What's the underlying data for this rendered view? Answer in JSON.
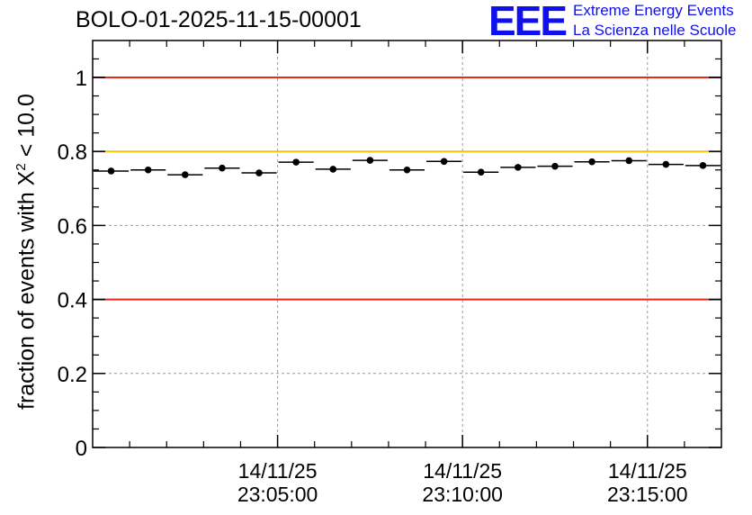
{
  "chart_data": {
    "type": "scatter",
    "title": "BOLO-01-2025-11-15-00001",
    "ylabel_prefix": "fraction of events with X",
    "ylabel_sup": "2",
    "ylabel_suffix": " < 10.0",
    "xlabel": "",
    "ylim": [
      0,
      1.1
    ],
    "yticks": [
      {
        "value": 0,
        "label": "0"
      },
      {
        "value": 0.2,
        "label": "0.2"
      },
      {
        "value": 0.4,
        "label": "0.4"
      },
      {
        "value": 0.6,
        "label": "0.6"
      },
      {
        "value": 0.8,
        "label": "0.8"
      },
      {
        "value": 1,
        "label": "1"
      }
    ],
    "x_minutes_range": [
      0,
      17
    ],
    "xticks": [
      {
        "minute": 5,
        "date": "14/11/25",
        "time": "23:05:00"
      },
      {
        "minute": 10,
        "date": "14/11/25",
        "time": "23:10:00"
      },
      {
        "minute": 15,
        "date": "14/11/25",
        "time": "23:15:00"
      }
    ],
    "reference_lines": [
      {
        "y": 1.0,
        "color": "#e8281f"
      },
      {
        "y": 0.8,
        "color": "#ffc000"
      },
      {
        "y": 0.4,
        "color": "#e8281f"
      }
    ],
    "points": [
      {
        "x": 0.5,
        "y": 0.747
      },
      {
        "x": 1.5,
        "y": 0.75
      },
      {
        "x": 2.5,
        "y": 0.737
      },
      {
        "x": 3.5,
        "y": 0.755
      },
      {
        "x": 4.5,
        "y": 0.742
      },
      {
        "x": 5.5,
        "y": 0.771
      },
      {
        "x": 6.5,
        "y": 0.752
      },
      {
        "x": 7.5,
        "y": 0.776
      },
      {
        "x": 8.5,
        "y": 0.75
      },
      {
        "x": 9.5,
        "y": 0.773
      },
      {
        "x": 10.5,
        "y": 0.744
      },
      {
        "x": 11.5,
        "y": 0.757
      },
      {
        "x": 12.5,
        "y": 0.76
      },
      {
        "x": 13.5,
        "y": 0.772
      },
      {
        "x": 14.5,
        "y": 0.775
      },
      {
        "x": 15.5,
        "y": 0.765
      },
      {
        "x": 16.5,
        "y": 0.762
      }
    ],
    "bin_width_minutes": 1,
    "grid": true
  },
  "logo": {
    "mark": "EEE",
    "line1": "Extreme Energy Events",
    "line2": "La Scienza nelle Scuole",
    "color": "#1010ee"
  }
}
